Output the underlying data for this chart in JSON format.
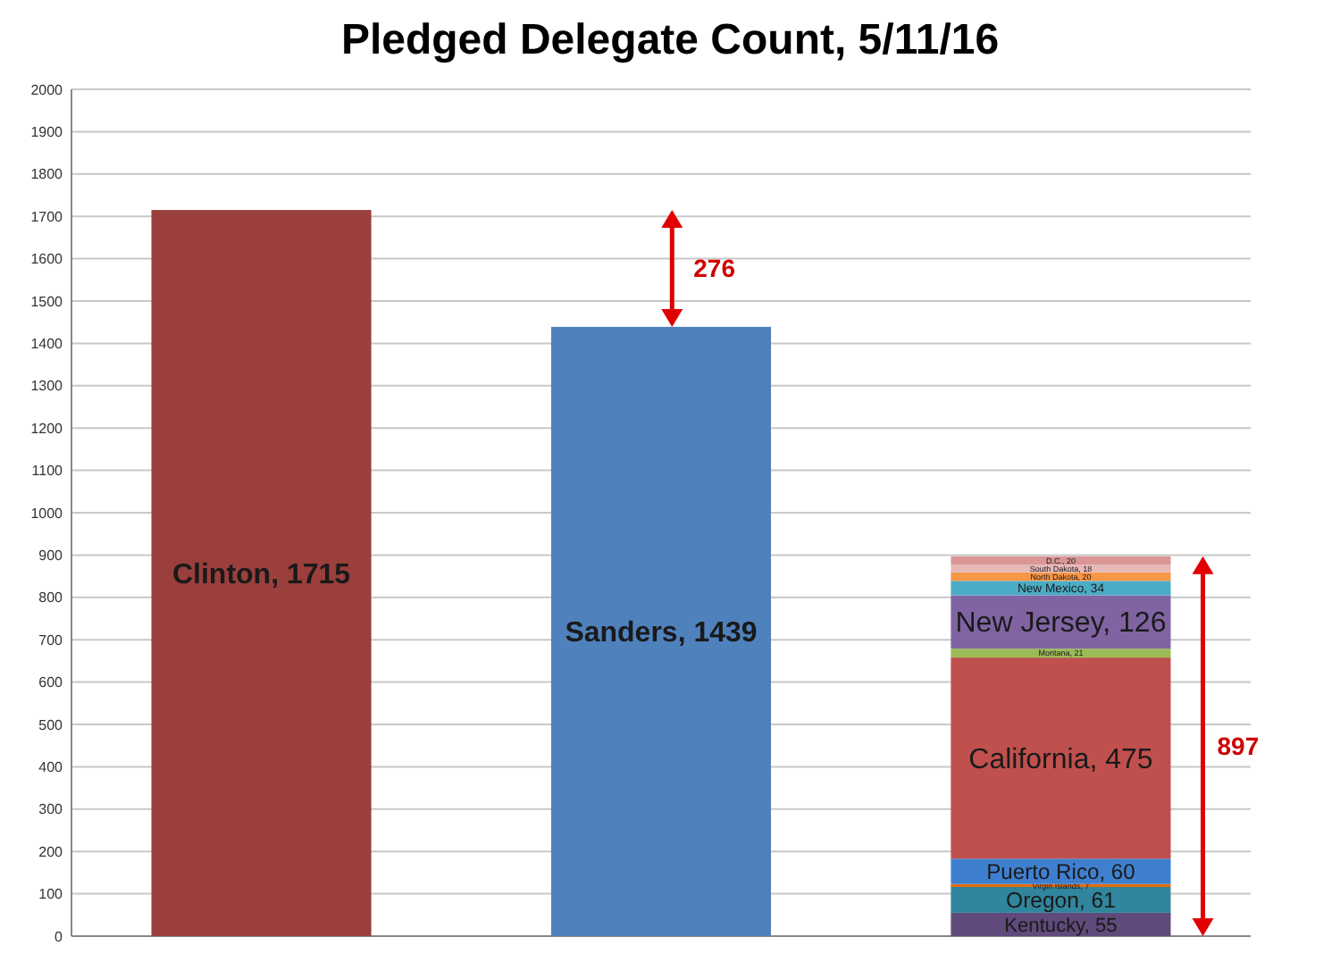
{
  "chart_data": {
    "type": "bar",
    "title": "Pledged Delegate Count, 5/11/16",
    "stacked": true,
    "categories": [
      null,
      null,
      null
    ],
    "series": [
      {
        "color": "#9b3f3c",
        "values": [
          1715,
          null,
          null
        ],
        "value_labels": [
          "Clinton, 1715",
          null,
          null
        ]
      },
      {
        "color": "#4f81bd",
        "values": [
          null,
          1439,
          null
        ],
        "value_labels": [
          null,
          "Sanders, 1439",
          null
        ]
      },
      {
        "color": "#604a7b",
        "values": [
          null,
          null,
          55
        ],
        "value_labels": [
          null,
          null,
          "Kentucky, 55"
        ]
      },
      {
        "color": "#31859c",
        "values": [
          null,
          null,
          61
        ],
        "value_labels": [
          null,
          null,
          "Oregon, 61"
        ]
      },
      {
        "color": "#e46c0a",
        "values": [
          null,
          null,
          7
        ],
        "value_labels": [
          null,
          null,
          "Virgin Islands, 7"
        ]
      },
      {
        "color": "#3f7fcf",
        "values": [
          null,
          null,
          60
        ],
        "value_labels": [
          null,
          null,
          "Puerto Rico, 60"
        ]
      },
      {
        "color": "#c0504d",
        "values": [
          null,
          null,
          475
        ],
        "value_labels": [
          null,
          null,
          "California, 475"
        ]
      },
      {
        "color": "#9bbb59",
        "values": [
          null,
          null,
          21
        ],
        "value_labels": [
          null,
          null,
          "Montana, 21"
        ]
      },
      {
        "color": "#8064a2",
        "values": [
          null,
          null,
          126
        ],
        "value_labels": [
          null,
          null,
          "New Jersey, 126"
        ]
      },
      {
        "color": "#4bacc6",
        "values": [
          null,
          null,
          34
        ],
        "value_labels": [
          null,
          null,
          "New Mexico, 34"
        ]
      },
      {
        "color": "#f79646",
        "values": [
          null,
          null,
          20
        ],
        "value_labels": [
          null,
          null,
          "North Dakota, 20"
        ]
      },
      {
        "color": "#e6b9b8",
        "values": [
          null,
          null,
          18
        ],
        "value_labels": [
          null,
          null,
          "South Dakota, 18"
        ]
      },
      {
        "color": "#d99694",
        "values": [
          null,
          null,
          20
        ],
        "value_labels": [
          null,
          null,
          "D.C., 20"
        ]
      }
    ],
    "annotations": [
      "276",
      "897"
    ],
    "ylim": [
      0,
      2000
    ],
    "yticks": [
      0,
      100,
      200,
      300,
      400,
      500,
      600,
      700,
      800,
      900,
      1000,
      1100,
      1200,
      1300,
      1400,
      1500,
      1600,
      1700,
      1800,
      1900,
      2000
    ],
    "grid": "y",
    "tick_labels": "y"
  }
}
